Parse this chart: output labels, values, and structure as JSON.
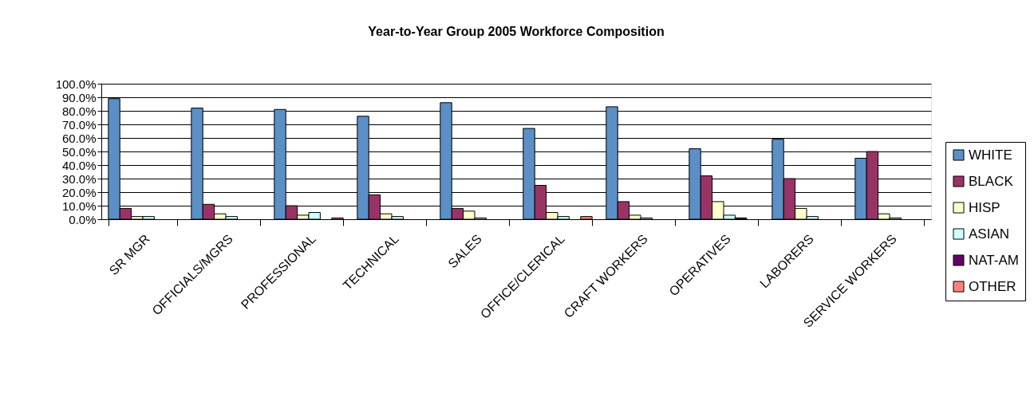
{
  "chart_data": {
    "type": "bar",
    "title": "Year-to-Year Group 2005 Workforce Composition",
    "categories": [
      "SR MGR",
      "OFFICIALS/MGRS",
      "PROFESSIONAL",
      "TECHNICAL",
      "SALES",
      "OFFICE/CLERICAL",
      "CRAFT WORKERS",
      "OPERATIVES",
      "LABORERS",
      "SERVICE WORKERS"
    ],
    "series": [
      {
        "name": "WHITE",
        "color": "#5b8fc6",
        "values": [
          89,
          82,
          81,
          76,
          86,
          67,
          83,
          52,
          59,
          45
        ]
      },
      {
        "name": "BLACK",
        "color": "#993366",
        "values": [
          8,
          11,
          10,
          18,
          8,
          25,
          13,
          32,
          30,
          50
        ]
      },
      {
        "name": "HISP",
        "color": "#ffffcc",
        "values": [
          2,
          4,
          3,
          4,
          6,
          5,
          3,
          13,
          8,
          4
        ]
      },
      {
        "name": "ASIAN",
        "color": "#ccffff",
        "values": [
          2,
          2,
          5,
          2,
          1,
          2,
          1,
          3,
          2,
          1
        ]
      },
      {
        "name": "NAT-AM",
        "color": "#660066",
        "values": [
          null,
          null,
          null,
          null,
          null,
          null,
          null,
          1,
          null,
          null
        ]
      },
      {
        "name": "OTHER",
        "color": "#ff8080",
        "values": [
          null,
          null,
          1,
          null,
          null,
          2,
          null,
          null,
          null,
          null
        ]
      }
    ],
    "ylim": [
      0,
      100
    ],
    "yticks": [
      {
        "value": 0,
        "label": "0.0%"
      },
      {
        "value": 10,
        "label": "10.0%"
      },
      {
        "value": 20,
        "label": "20.0%"
      },
      {
        "value": 30,
        "label": "30.0%"
      },
      {
        "value": 40,
        "label": "40.0%"
      },
      {
        "value": 50,
        "label": "50.0%"
      },
      {
        "value": 60,
        "label": "60.0%"
      },
      {
        "value": 70,
        "label": "70.0%"
      },
      {
        "value": 80,
        "label": "80.0%"
      },
      {
        "value": 90,
        "label": "90.0%"
      },
      {
        "value": 100,
        "label": "100.0%"
      }
    ],
    "grid": "y",
    "legend": "right"
  }
}
